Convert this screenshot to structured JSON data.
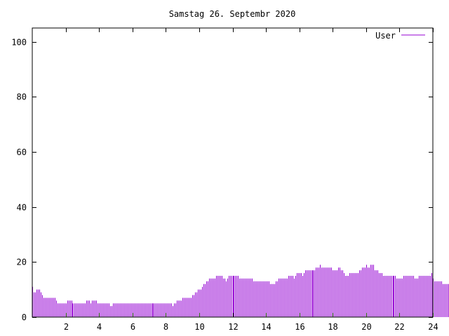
{
  "chart_data": {
    "type": "bar",
    "title": "Samstag 26. Septembr 2020",
    "xlabel": "",
    "ylabel": "",
    "xlim": [
      0,
      24
    ],
    "ylim": [
      0,
      105
    ],
    "x_ticks": [
      2,
      4,
      6,
      8,
      10,
      12,
      14,
      16,
      18,
      20,
      22,
      24
    ],
    "y_ticks": [
      0,
      20,
      40,
      60,
      80,
      100
    ],
    "grid": false,
    "legend_position": "top-right",
    "series": [
      {
        "name": "User",
        "color": "#9400d3",
        "interval_minutes": 5,
        "values": [
          11,
          9,
          9,
          10,
          10,
          10,
          9,
          8,
          7,
          7,
          7,
          7,
          7,
          7,
          7,
          7,
          7,
          6,
          5,
          5,
          5,
          5,
          5,
          5,
          5,
          6,
          6,
          6,
          6,
          5,
          5,
          5,
          5,
          5,
          5,
          5,
          5,
          5,
          5,
          6,
          6,
          6,
          5,
          6,
          6,
          6,
          6,
          5,
          5,
          5,
          5,
          5,
          5,
          5,
          5,
          5,
          4,
          4,
          5,
          5,
          5,
          5,
          5,
          5,
          5,
          5,
          5,
          5,
          5,
          5,
          5,
          5,
          5,
          5,
          5,
          5,
          5,
          5,
          5,
          5,
          5,
          5,
          5,
          5,
          5,
          5,
          5,
          5,
          5,
          5,
          5,
          5,
          5,
          5,
          5,
          5,
          5,
          5,
          5,
          5,
          5,
          4,
          5,
          5,
          6,
          6,
          6,
          6,
          7,
          7,
          7,
          7,
          7,
          7,
          7,
          8,
          8,
          9,
          9,
          10,
          10,
          10,
          11,
          12,
          12,
          13,
          13,
          14,
          14,
          14,
          14,
          14,
          15,
          15,
          15,
          15,
          15,
          14,
          14,
          13,
          14,
          15,
          15,
          15,
          15,
          15,
          15,
          15,
          15,
          14,
          14,
          14,
          14,
          14,
          14,
          14,
          14,
          14,
          14,
          13,
          13,
          13,
          13,
          13,
          13,
          13,
          13,
          13,
          13,
          13,
          13,
          12,
          12,
          12,
          12,
          13,
          13,
          14,
          14,
          14,
          14,
          14,
          14,
          14,
          15,
          15,
          15,
          15,
          14,
          15,
          16,
          16,
          16,
          16,
          15,
          16,
          17,
          17,
          17,
          17,
          17,
          17,
          17,
          17,
          18,
          18,
          18,
          19,
          18,
          18,
          18,
          18,
          18,
          18,
          18,
          18,
          17,
          17,
          17,
          17,
          18,
          18,
          17,
          17,
          16,
          15,
          15,
          15,
          16,
          16,
          16,
          16,
          16,
          16,
          16,
          17,
          17,
          18,
          18,
          18,
          19,
          18,
          18,
          19,
          19,
          19,
          17,
          17,
          17,
          16,
          16,
          16,
          15,
          15,
          15,
          15,
          15,
          15,
          15,
          15,
          15,
          15,
          14,
          14,
          14,
          14,
          14,
          15,
          15,
          15,
          15,
          15,
          15,
          15,
          15,
          14,
          14,
          14,
          15,
          15,
          15,
          15,
          15,
          15,
          15,
          15,
          15,
          16,
          14,
          13,
          13,
          13,
          13,
          13,
          13,
          12,
          12,
          12,
          12,
          12
        ]
      }
    ]
  }
}
